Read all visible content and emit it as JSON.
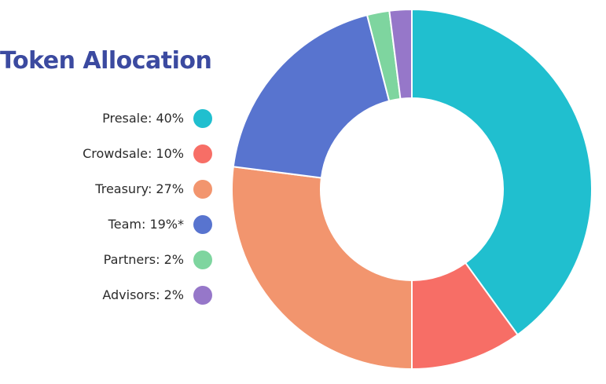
{
  "title": "Token Allocation",
  "chart_data": {
    "type": "pie",
    "title": "Token Allocation",
    "labels": [
      "Presale: 40%",
      "Crowdsale: 10%",
      "Treasury: 27%",
      "Team: 19%*",
      "Partners: 2%",
      "Advisors: 2%"
    ],
    "categories": [
      "Presale",
      "Crowdsale",
      "Treasury",
      "Team",
      "Partners",
      "Advisors"
    ],
    "values": [
      40,
      10,
      27,
      19,
      2,
      2
    ],
    "colors": [
      "#20bfcf",
      "#f76e66",
      "#f2956e",
      "#5874cf",
      "#7ed59f",
      "#9677c9"
    ],
    "donut": true,
    "legend": "left"
  }
}
